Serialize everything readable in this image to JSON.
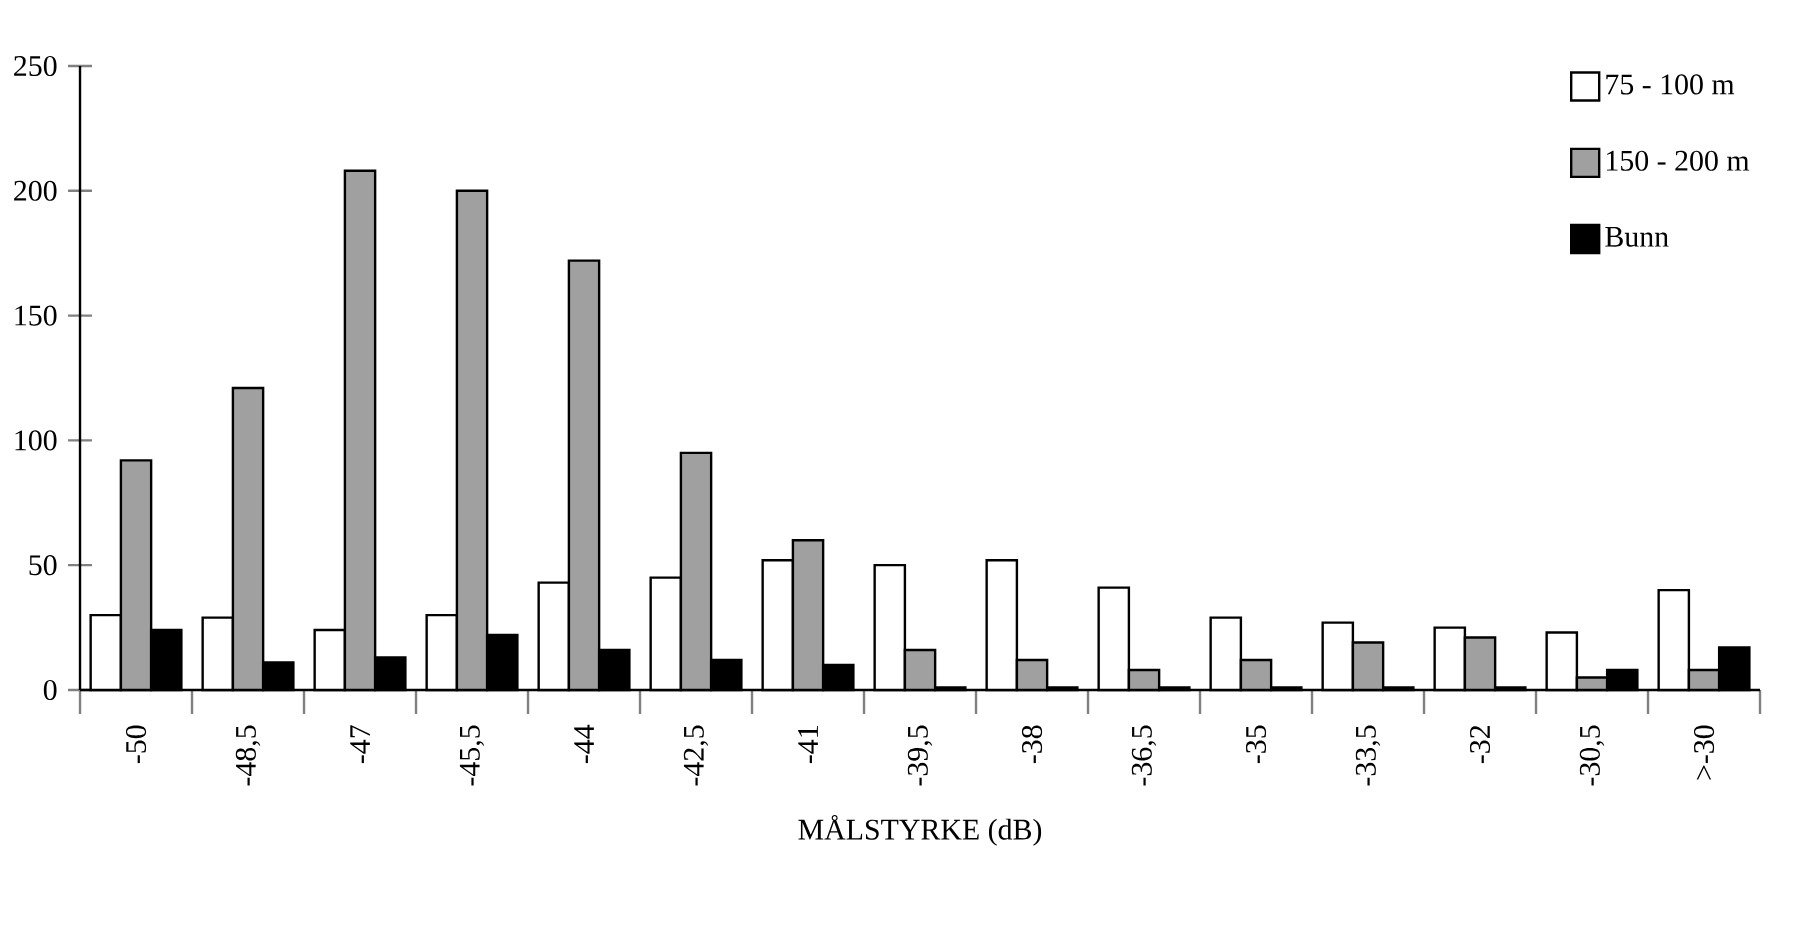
{
  "chart_data": {
    "type": "bar",
    "xlabel": "MÅLSTYRKE (dB)",
    "categories": [
      "-50",
      "-48,5",
      "-47",
      "-45,5",
      "-44",
      "-42,5",
      "-41",
      "-39,5",
      "-38",
      "-36,5",
      "-35",
      "-33,5",
      "-32",
      "-30,5",
      ">-30"
    ],
    "series": [
      {
        "name": "75 - 100 m",
        "color": "#ffffff",
        "values": [
          30,
          29,
          24,
          30,
          43,
          45,
          52,
          50,
          52,
          41,
          29,
          27,
          25,
          23,
          40
        ]
      },
      {
        "name": "150 - 200 m",
        "color": "#a0a0a0",
        "values": [
          92,
          121,
          208,
          200,
          172,
          95,
          60,
          16,
          12,
          8,
          12,
          19,
          21,
          5,
          8
        ]
      },
      {
        "name": "Bunn",
        "color": "#000000",
        "values": [
          24,
          11,
          13,
          22,
          16,
          12,
          10,
          1,
          1,
          1,
          1,
          1,
          1,
          8,
          17
        ]
      }
    ],
    "ylim": [
      0,
      250
    ],
    "yticks": [
      0,
      50,
      100,
      150,
      200,
      250
    ],
    "grid": false,
    "legend": "top right"
  }
}
